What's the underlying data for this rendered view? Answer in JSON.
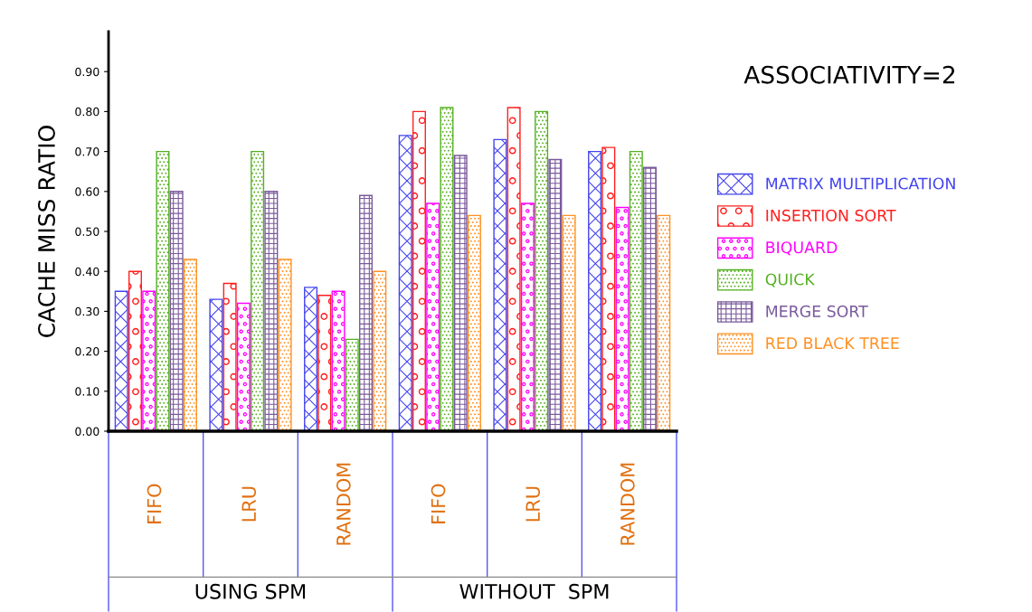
{
  "chart_data": {
    "type": "bar",
    "title": "ASSOCIATIVITY=2",
    "ylabel": "CACHE MISS RATIO",
    "categories": [
      "FIFO",
      "LRU",
      "RANDOM",
      "FIFO",
      "LRU",
      "RANDOM"
    ],
    "annotations": [
      "USING SPM",
      "WITHOUT  SPM"
    ],
    "series": [
      {
        "name": "MATRIX MULTIPLICATION",
        "color": "#4444ee",
        "values": [
          0.35,
          0.33,
          0.36,
          0.74,
          0.73,
          0.7
        ]
      },
      {
        "name": "INSERTION SORT",
        "color": "#ff2020",
        "values": [
          0.4,
          0.37,
          0.34,
          0.8,
          0.81,
          0.71
        ]
      },
      {
        "name": "BIQUARD",
        "color": "#ff00ff",
        "values": [
          0.35,
          0.32,
          0.35,
          0.57,
          0.57,
          0.56
        ]
      },
      {
        "name": "QUICK",
        "color": "#55b020",
        "values": [
          0.7,
          0.7,
          0.23,
          0.81,
          0.8,
          0.7
        ]
      },
      {
        "name": "MERGE SORT",
        "color": "#7a5a9c",
        "values": [
          0.6,
          0.6,
          0.59,
          0.69,
          0.68,
          0.66
        ]
      },
      {
        "name": "RED BLACK TREE",
        "color": "#ff9020",
        "values": [
          0.43,
          0.43,
          0.4,
          0.54,
          0.54,
          0.54
        ]
      }
    ],
    "ylim": [
      0,
      1.0
    ],
    "yticks": [
      {
        "value": 0,
        "label": "0.00"
      },
      {
        "value": 0.1,
        "label": "0.10"
      },
      {
        "value": 0.2,
        "label": "0.20"
      },
      {
        "value": 0.3,
        "label": "0.30"
      },
      {
        "value": 0.4,
        "label": "0.40"
      },
      {
        "value": 0.5,
        "label": "0.50"
      },
      {
        "value": 0.6,
        "label": "0.60"
      },
      {
        "value": 0.7,
        "label": "0.70"
      },
      {
        "value": 0.8,
        "label": "0.80"
      },
      {
        "value": 0.9,
        "label": "0.90"
      }
    ],
    "grid": false,
    "legend": "right"
  }
}
